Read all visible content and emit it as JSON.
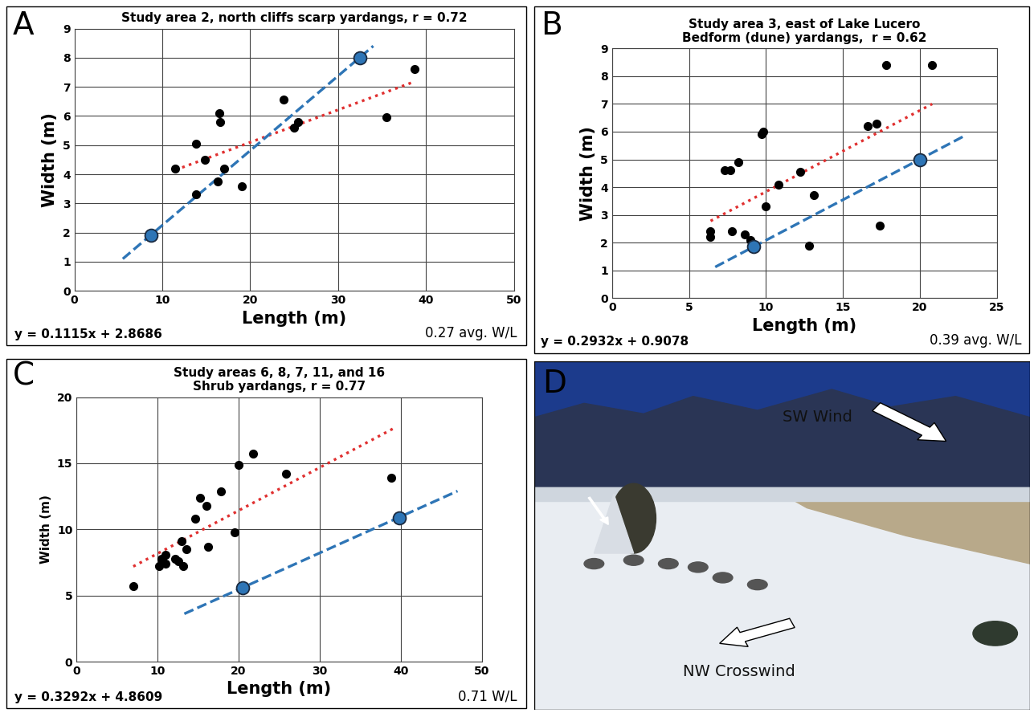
{
  "chart_data": [
    {
      "type": "scatter",
      "panel": "A",
      "title": "Study area 2, north cliffs scarp yardangs, r = 0.72",
      "x_label": "Length (m)",
      "y_label": "Width (m)",
      "xlim": [
        0,
        50
      ],
      "xticks": [
        0,
        10,
        20,
        30,
        40,
        50
      ],
      "ylim": [
        0,
        9
      ],
      "yticks": [
        0,
        1,
        2,
        3,
        4,
        5,
        6,
        7,
        8,
        9
      ],
      "grid": true,
      "annotations": [
        "y = 0.1115x + 2.8686",
        "0.27 avg. W/L"
      ],
      "series": [
        {
          "type": "scatter",
          "color": "#000000",
          "marker": "circle",
          "x": [
            11.5,
            13.8,
            13.8,
            14.8,
            16.5,
            16.6,
            16.3,
            17.0,
            19.0,
            23.8,
            25.0,
            25.4,
            35.5,
            38.7
          ],
          "values": [
            4.2,
            5.05,
            3.3,
            4.5,
            6.1,
            5.8,
            3.75,
            4.2,
            3.6,
            6.55,
            5.6,
            5.8,
            5.95,
            7.6
          ]
        },
        {
          "type": "line",
          "color": "#e03030",
          "line_style": "dotted",
          "x": [
            11.5,
            38.7
          ],
          "values": [
            4.15,
            7.18
          ]
        },
        {
          "type": "line",
          "color": "#2e75b6",
          "line_style": "dashed",
          "x": [
            5.5,
            34.0
          ],
          "values": [
            1.1,
            8.4
          ]
        },
        {
          "type": "scatter",
          "color": "#2e75b6",
          "marker": "circle",
          "x": [
            8.7,
            32.5
          ],
          "values": [
            1.9,
            8.0
          ]
        }
      ]
    },
    {
      "type": "scatter",
      "panel": "B",
      "title": "Study area 3, east of Lake Lucero\nBedform (dune) yardangs,  r = 0.62",
      "x_label": "Length (m)",
      "y_label": "Width (m)",
      "xlim": [
        0,
        25
      ],
      "xticks": [
        0,
        5,
        10,
        15,
        20,
        25
      ],
      "ylim": [
        0,
        9
      ],
      "yticks": [
        0,
        1,
        2,
        3,
        4,
        5,
        6,
        7,
        8,
        9
      ],
      "grid": true,
      "annotations": [
        "y = 0.2932x + 0.9078",
        "0.39 avg. W/L"
      ],
      "series": [
        {
          "type": "scatter",
          "color": "#000000",
          "marker": "circle",
          "x": [
            6.4,
            6.4,
            7.3,
            7.7,
            7.8,
            8.2,
            8.6,
            9.0,
            9.7,
            9.8,
            10.0,
            10.8,
            12.2,
            12.8,
            13.1,
            16.6,
            17.2,
            17.4,
            17.8,
            20.8
          ],
          "values": [
            2.4,
            2.2,
            4.6,
            4.6,
            2.4,
            4.9,
            2.3,
            2.1,
            5.9,
            6.0,
            3.3,
            4.1,
            4.55,
            1.9,
            3.7,
            6.2,
            6.3,
            2.6,
            8.4,
            8.4
          ]
        },
        {
          "type": "line",
          "color": "#e03030",
          "line_style": "dotted",
          "x": [
            6.4,
            20.8
          ],
          "values": [
            2.78,
            7.0
          ]
        },
        {
          "type": "line",
          "color": "#2e75b6",
          "line_style": "dashed",
          "x": [
            6.7,
            22.8
          ],
          "values": [
            1.12,
            5.82
          ]
        },
        {
          "type": "scatter",
          "color": "#2e75b6",
          "marker": "circle",
          "x": [
            9.2,
            20.0
          ],
          "values": [
            1.85,
            5.0
          ]
        }
      ]
    },
    {
      "type": "scatter",
      "panel": "C",
      "title": "Study areas 6, 8, 7, 11, and 16\nShrub yardangs, r = 0.77",
      "x_label": "Length (m)",
      "y_label": "Width (m)",
      "xlim": [
        0,
        50
      ],
      "xticks": [
        0,
        10,
        20,
        30,
        40,
        50
      ],
      "ylim": [
        0,
        20
      ],
      "yticks": [
        0,
        5,
        10,
        15,
        20
      ],
      "grid": true,
      "annotations": [
        "y = 0.3292x + 4.8609",
        "0.71 W/L"
      ],
      "series": [
        {
          "type": "scatter",
          "color": "#000000",
          "marker": "circle",
          "x": [
            7.0,
            10.2,
            10.5,
            11.0,
            11.0,
            12.2,
            12.6,
            13.0,
            13.2,
            13.6,
            14.6,
            15.2,
            16.0,
            16.2,
            17.8,
            19.5,
            20.0,
            21.8,
            25.8,
            38.8
          ],
          "values": [
            5.7,
            7.2,
            7.8,
            8.1,
            7.4,
            7.8,
            7.6,
            9.1,
            7.2,
            8.5,
            10.8,
            12.4,
            11.8,
            8.7,
            12.9,
            9.8,
            14.9,
            15.7,
            14.2,
            13.9
          ]
        },
        {
          "type": "line",
          "color": "#e03030",
          "line_style": "dotted",
          "x": [
            7.0,
            39.0
          ],
          "values": [
            7.2,
            17.6
          ]
        },
        {
          "type": "line",
          "color": "#2e75b6",
          "line_style": "dashed",
          "x": [
            13.3,
            47.0
          ],
          "values": [
            3.62,
            12.9
          ]
        },
        {
          "type": "scatter",
          "color": "#2e75b6",
          "marker": "circle",
          "x": [
            20.5,
            39.8
          ],
          "values": [
            5.6,
            10.9
          ]
        }
      ]
    }
  ],
  "photo": {
    "panel": "D",
    "labels": [
      "SW Wind",
      "NW Crosswind"
    ]
  }
}
